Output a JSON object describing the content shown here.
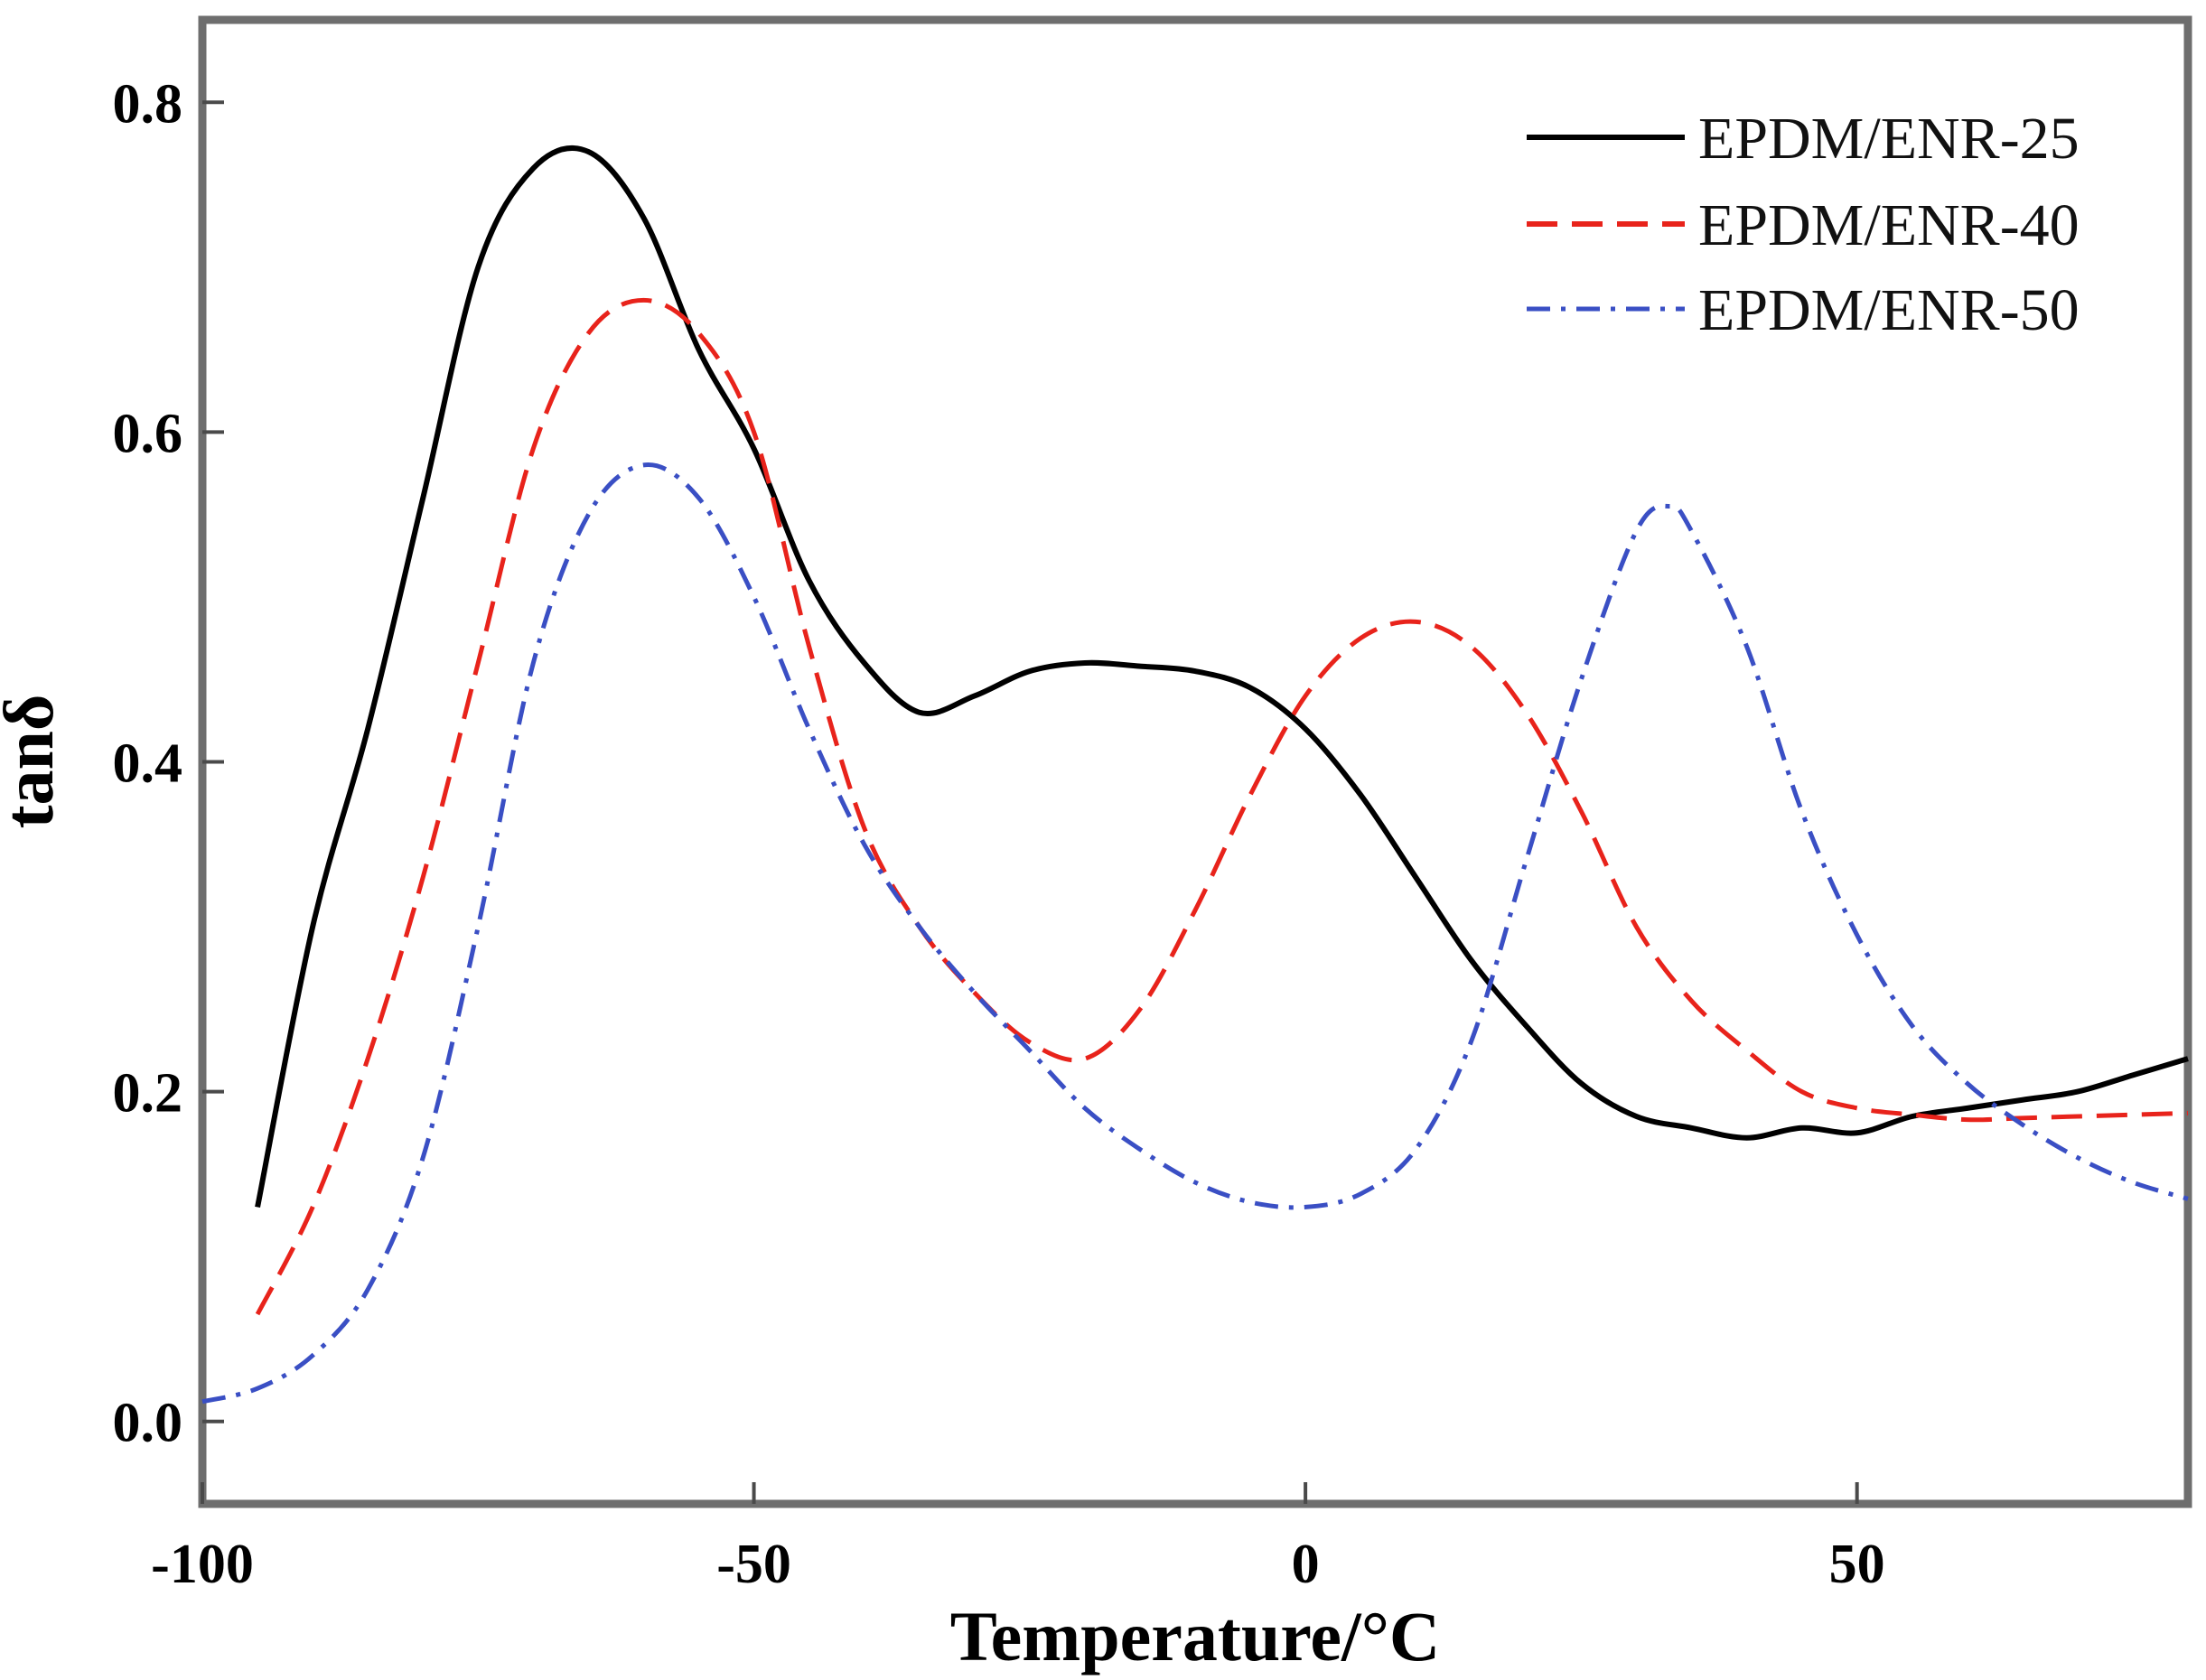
{
  "chart_data": {
    "type": "line",
    "title": "",
    "xlabel": "Temperature/°C",
    "ylabel": "tanδ",
    "xlim": [
      -100,
      80
    ],
    "ylim": [
      -0.05,
      0.85
    ],
    "xticks": [
      -100,
      -50,
      0,
      50
    ],
    "xtick_labels": [
      "-100",
      "-50",
      "0",
      "50"
    ],
    "yticks": [
      0.0,
      0.2,
      0.4,
      0.6,
      0.8
    ],
    "ytick_labels": [
      "0.0",
      "0.2",
      "0.4",
      "0.6",
      "0.8"
    ],
    "grid": false,
    "legend_position": "top-right",
    "series": [
      {
        "name": "EPDM/ENR-25",
        "color": "#000000",
        "dash": "solid",
        "points": [
          [
            -95,
            0.13
          ],
          [
            -90,
            0.3
          ],
          [
            -85,
            0.42
          ],
          [
            -80,
            0.56
          ],
          [
            -75,
            0.7
          ],
          [
            -70,
            0.76
          ],
          [
            -65,
            0.77
          ],
          [
            -60,
            0.73
          ],
          [
            -55,
            0.65
          ],
          [
            -50,
            0.59
          ],
          [
            -45,
            0.51
          ],
          [
            -40,
            0.46
          ],
          [
            -35,
            0.43
          ],
          [
            -30,
            0.44
          ],
          [
            -25,
            0.455
          ],
          [
            -20,
            0.46
          ],
          [
            -15,
            0.458
          ],
          [
            -10,
            0.455
          ],
          [
            -5,
            0.445
          ],
          [
            0,
            0.42
          ],
          [
            5,
            0.38
          ],
          [
            10,
            0.33
          ],
          [
            15,
            0.28
          ],
          [
            20,
            0.24
          ],
          [
            25,
            0.205
          ],
          [
            30,
            0.185
          ],
          [
            35,
            0.178
          ],
          [
            40,
            0.172
          ],
          [
            45,
            0.178
          ],
          [
            50,
            0.175
          ],
          [
            55,
            0.185
          ],
          [
            60,
            0.19
          ],
          [
            65,
            0.195
          ],
          [
            70,
            0.2
          ],
          [
            75,
            0.21
          ],
          [
            80,
            0.22
          ]
        ]
      },
      {
        "name": "EPDM/ENR-40",
        "color": "#e8231b",
        "dash": "dashed",
        "points": [
          [
            -95,
            0.065
          ],
          [
            -90,
            0.13
          ],
          [
            -85,
            0.22
          ],
          [
            -80,
            0.33
          ],
          [
            -75,
            0.46
          ],
          [
            -70,
            0.59
          ],
          [
            -65,
            0.66
          ],
          [
            -60,
            0.68
          ],
          [
            -55,
            0.66
          ],
          [
            -50,
            0.6
          ],
          [
            -45,
            0.47
          ],
          [
            -40,
            0.36
          ],
          [
            -35,
            0.3
          ],
          [
            -30,
            0.26
          ],
          [
            -25,
            0.23
          ],
          [
            -20,
            0.22
          ],
          [
            -15,
            0.25
          ],
          [
            -10,
            0.31
          ],
          [
            -5,
            0.38
          ],
          [
            0,
            0.44
          ],
          [
            5,
            0.475
          ],
          [
            10,
            0.485
          ],
          [
            15,
            0.47
          ],
          [
            20,
            0.43
          ],
          [
            25,
            0.37
          ],
          [
            30,
            0.3
          ],
          [
            35,
            0.255
          ],
          [
            40,
            0.225
          ],
          [
            45,
            0.2
          ],
          [
            50,
            0.19
          ],
          [
            55,
            0.186
          ],
          [
            60,
            0.183
          ],
          [
            65,
            0.184
          ],
          [
            70,
            0.185
          ],
          [
            75,
            0.186
          ],
          [
            80,
            0.187
          ]
        ]
      },
      {
        "name": "EPDM/ENR-50",
        "color": "#3a4fc4",
        "dash": "dashdot",
        "points": [
          [
            -100,
            0.012
          ],
          [
            -95,
            0.02
          ],
          [
            -90,
            0.04
          ],
          [
            -85,
            0.08
          ],
          [
            -80,
            0.16
          ],
          [
            -75,
            0.3
          ],
          [
            -70,
            0.46
          ],
          [
            -65,
            0.55
          ],
          [
            -60,
            0.58
          ],
          [
            -55,
            0.56
          ],
          [
            -50,
            0.5
          ],
          [
            -45,
            0.42
          ],
          [
            -40,
            0.35
          ],
          [
            -35,
            0.3
          ],
          [
            -30,
            0.26
          ],
          [
            -25,
            0.225
          ],
          [
            -20,
            0.19
          ],
          [
            -15,
            0.165
          ],
          [
            -10,
            0.145
          ],
          [
            -5,
            0.133
          ],
          [
            0,
            0.13
          ],
          [
            5,
            0.138
          ],
          [
            10,
            0.165
          ],
          [
            15,
            0.23
          ],
          [
            20,
            0.34
          ],
          [
            25,
            0.45
          ],
          [
            30,
            0.54
          ],
          [
            33,
            0.555
          ],
          [
            35,
            0.54
          ],
          [
            40,
            0.47
          ],
          [
            45,
            0.37
          ],
          [
            50,
            0.295
          ],
          [
            55,
            0.24
          ],
          [
            60,
            0.205
          ],
          [
            65,
            0.18
          ],
          [
            70,
            0.16
          ],
          [
            75,
            0.145
          ],
          [
            80,
            0.135
          ]
        ]
      }
    ]
  }
}
